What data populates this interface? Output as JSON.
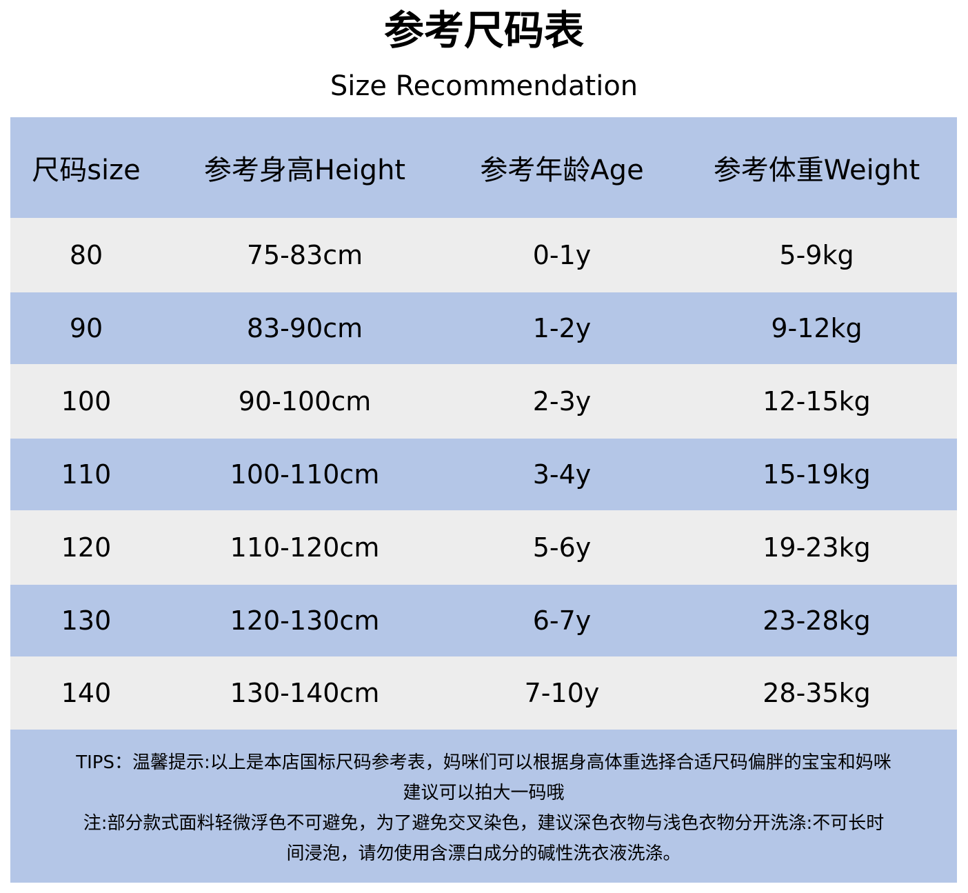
{
  "title": "参考尺码表",
  "subtitle": "Size Recommendation",
  "colors": {
    "blue_row": "#b4c6e7",
    "gray_row": "#ededed"
  },
  "table": {
    "headers": [
      "尺码size",
      "参考身高Height",
      "参考年龄Age",
      "参考体重Weight"
    ],
    "rows": [
      [
        "80",
        "75-83cm",
        "0-1y",
        "5-9kg"
      ],
      [
        "90",
        "83-90cm",
        "1-2y",
        "9-12kg"
      ],
      [
        "100",
        "90-100cm",
        "2-3y",
        "12-15kg"
      ],
      [
        "110",
        "100-110cm",
        "3-4y",
        "15-19kg"
      ],
      [
        "120",
        "110-120cm",
        "5-6y",
        "19-23kg"
      ],
      [
        "130",
        "120-130cm",
        "6-7y",
        "23-28kg"
      ],
      [
        "140",
        "130-140cm",
        "7-10y",
        "28-35kg"
      ]
    ]
  },
  "tips": {
    "line1": "TIPS：温馨提示:以上是本店国标尺码参考表，妈咪们可以根据身高体重选择合适尺码偏胖的宝宝和妈咪",
    "line2": "建议可以拍大一码哦",
    "line3": "注:部分款式面料轻微浮色不可避免，为了避免交叉染色，建议深色衣物与浅色衣物分开洗涤:不可长时",
    "line4": "间浸泡，请勿使用含漂白成分的碱性洗衣液洗涤。"
  }
}
